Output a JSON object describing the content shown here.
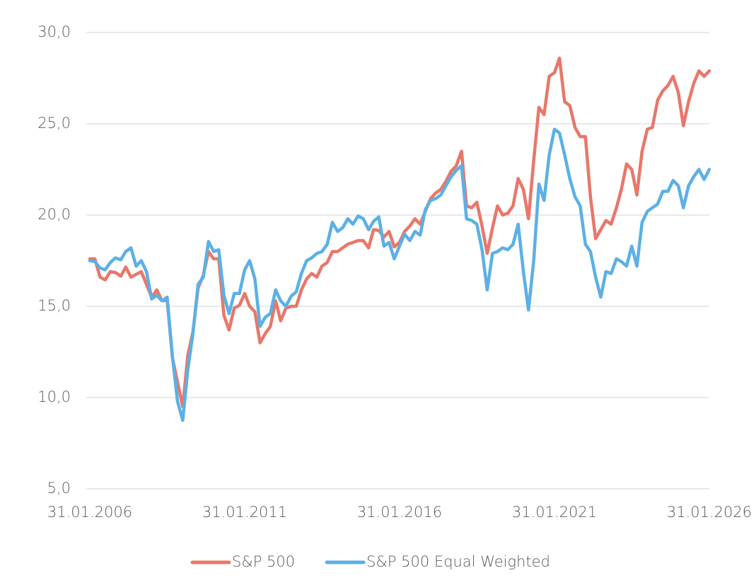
{
  "chart_data": {
    "type": "line",
    "x": [
      "31.01.2006",
      "31.03.2006",
      "31.05.2006",
      "31.07.2006",
      "30.09.2006",
      "30.11.2006",
      "31.01.2007",
      "31.03.2007",
      "31.05.2007",
      "31.07.2007",
      "30.09.2007",
      "30.11.2007",
      "31.01.2008",
      "31.03.2008",
      "31.05.2008",
      "31.07.2008",
      "30.09.2008",
      "30.11.2008",
      "31.01.2009",
      "31.03.2009",
      "31.05.2009",
      "31.07.2009",
      "30.09.2009",
      "30.11.2009",
      "31.01.2010",
      "31.03.2010",
      "31.05.2010",
      "31.07.2010",
      "30.09.2010",
      "30.11.2010",
      "31.01.2011",
      "31.03.2011",
      "31.05.2011",
      "31.07.2011",
      "30.09.2011",
      "30.11.2011",
      "31.01.2012",
      "31.03.2012",
      "31.05.2012",
      "31.07.2012",
      "30.09.2012",
      "30.11.2012",
      "31.01.2013",
      "31.03.2013",
      "31.05.2013",
      "31.07.2013",
      "30.09.2013",
      "30.11.2013",
      "31.01.2014",
      "31.03.2014",
      "31.05.2014",
      "31.07.2014",
      "30.09.2014",
      "30.11.2014",
      "31.01.2015",
      "31.03.2015",
      "31.05.2015",
      "31.07.2015",
      "30.09.2015",
      "30.11.2015",
      "31.01.2016",
      "31.03.2016",
      "31.05.2016",
      "31.07.2016",
      "30.09.2016",
      "30.11.2016",
      "31.01.2017",
      "31.03.2017",
      "31.05.2017",
      "31.07.2017",
      "30.09.2017",
      "30.11.2017",
      "31.01.2018",
      "31.03.2018",
      "31.05.2018",
      "31.07.2018",
      "30.09.2018",
      "30.11.2018",
      "31.01.2019",
      "31.03.2019",
      "31.05.2019",
      "31.07.2019",
      "30.09.2019",
      "30.11.2019",
      "31.01.2020",
      "31.03.2020",
      "31.05.2020",
      "31.07.2020",
      "30.09.2020",
      "30.11.2020",
      "31.01.2021",
      "31.03.2021",
      "31.05.2021",
      "31.07.2021",
      "30.09.2021",
      "30.11.2021",
      "31.01.2022",
      "31.03.2022",
      "31.05.2022",
      "31.07.2022",
      "30.09.2022",
      "30.11.2022",
      "31.01.2023",
      "31.03.2023",
      "31.05.2023",
      "31.07.2023",
      "30.09.2023",
      "30.11.2023",
      "31.01.2024",
      "31.03.2024",
      "31.05.2024",
      "31.07.2024",
      "30.09.2024",
      "30.11.2024",
      "31.01.2025",
      "31.03.2025",
      "31.05.2025",
      "31.07.2025",
      "30.09.2025",
      "30.11.2025",
      "31.01.2026"
    ],
    "series": [
      {
        "name": "S&P 500",
        "color": "#e8776a",
        "values": [
          17.6,
          17.6,
          16.6,
          16.45,
          16.9,
          16.85,
          16.65,
          17.15,
          16.6,
          16.75,
          16.9,
          16.2,
          15.5,
          15.9,
          15.3,
          15.35,
          12.2,
          10.85,
          9.5,
          12.3,
          13.6,
          16.0,
          16.7,
          18.0,
          17.6,
          17.6,
          14.5,
          13.7,
          14.9,
          15.05,
          15.7,
          15.0,
          14.7,
          13.0,
          13.5,
          13.9,
          15.3,
          14.2,
          14.9,
          15.0,
          15.0,
          15.9,
          16.5,
          16.8,
          16.6,
          17.2,
          17.4,
          18.0,
          18.0,
          18.2,
          18.4,
          18.5,
          18.6,
          18.6,
          18.2,
          19.2,
          19.15,
          18.8,
          19.1,
          18.25,
          18.5,
          19.1,
          19.4,
          19.8,
          19.5,
          20.2,
          20.9,
          21.2,
          21.4,
          21.85,
          22.4,
          22.7,
          23.5,
          20.5,
          20.4,
          20.7,
          19.4,
          17.9,
          19.3,
          20.5,
          20.0,
          20.1,
          20.5,
          22.0,
          21.4,
          19.8,
          23.0,
          25.9,
          25.5,
          27.6,
          27.8,
          28.6,
          26.2,
          26.0,
          24.8,
          24.3,
          24.3,
          21.0,
          18.7,
          19.2,
          19.7,
          19.5,
          20.4,
          21.4,
          22.8,
          22.5,
          21.1,
          23.5,
          24.7,
          24.8,
          26.3,
          26.8,
          27.1,
          27.6,
          26.7,
          24.9,
          26.2,
          27.2,
          27.9,
          27.6,
          27.9
        ]
      },
      {
        "name": "S&P 500 Equal Weighted",
        "color": "#5bb0e6",
        "values": [
          17.5,
          17.45,
          17.1,
          17.0,
          17.4,
          17.65,
          17.55,
          18.0,
          18.2,
          17.2,
          17.5,
          16.9,
          15.4,
          15.6,
          15.3,
          15.5,
          12.3,
          9.8,
          8.75,
          11.5,
          13.5,
          16.2,
          16.6,
          18.55,
          18.0,
          18.1,
          15.6,
          14.6,
          15.7,
          15.7,
          17.0,
          17.5,
          16.5,
          13.9,
          14.4,
          14.6,
          15.9,
          15.3,
          15.0,
          15.55,
          15.8,
          16.8,
          17.5,
          17.65,
          17.9,
          18.0,
          18.4,
          19.6,
          19.1,
          19.3,
          19.8,
          19.5,
          19.95,
          19.8,
          19.2,
          19.65,
          19.9,
          18.3,
          18.5,
          17.6,
          18.3,
          18.95,
          18.6,
          19.1,
          18.9,
          20.3,
          20.8,
          20.9,
          21.1,
          21.6,
          22.1,
          22.45,
          22.7,
          19.8,
          19.7,
          19.5,
          18.1,
          15.9,
          17.9,
          18.0,
          18.2,
          18.1,
          18.4,
          19.5,
          16.9,
          14.8,
          17.5,
          21.7,
          20.8,
          23.3,
          24.7,
          24.5,
          23.3,
          22.0,
          21.0,
          20.5,
          18.4,
          18.0,
          16.6,
          15.5,
          16.9,
          16.8,
          17.6,
          17.45,
          17.2,
          18.3,
          17.2,
          19.6,
          20.2,
          20.4,
          20.6,
          21.3,
          21.3,
          21.9,
          21.6,
          20.4,
          21.6,
          22.1,
          22.5,
          21.95,
          22.5
        ]
      }
    ],
    "xlim": [
      "31.01.2006",
      "31.01.2026"
    ],
    "xticks": [
      "31.01.2006",
      "31.01.2011",
      "31.01.2016",
      "31.01.2021",
      "31.01.2026"
    ],
    "ylim": [
      5,
      30
    ],
    "yticks": [
      {
        "value": 5,
        "label": "5,0"
      },
      {
        "value": 10,
        "label": "10,0"
      },
      {
        "value": 15,
        "label": "15,0"
      },
      {
        "value": 20,
        "label": "20,0"
      },
      {
        "value": 25,
        "label": "25,0"
      },
      {
        "value": 30,
        "label": "30,0"
      }
    ],
    "grid": true,
    "legend": "bottom"
  }
}
